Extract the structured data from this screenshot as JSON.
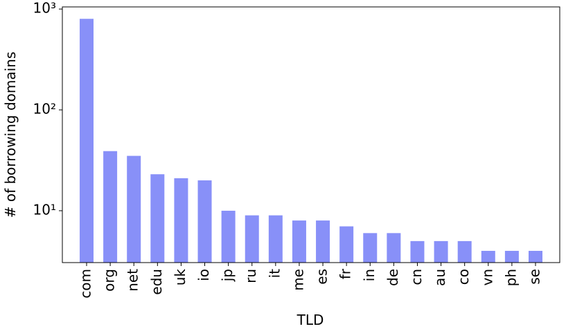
{
  "chart_data": {
    "type": "bar",
    "x_label": "TLD",
    "y_label": "# of borrowing domains",
    "log_scale": true,
    "categories": [
      "com",
      "org",
      "net",
      "edu",
      "uk",
      "io",
      "jp",
      "ru",
      "it",
      "me",
      "es",
      "fr",
      "in",
      "de",
      "cn",
      "au",
      "co",
      "vn",
      "ph",
      "se"
    ],
    "values": [
      800,
      39,
      35,
      23,
      21,
      20,
      10,
      9,
      9,
      8,
      8,
      7,
      6,
      6,
      5,
      5,
      5,
      4,
      4,
      4
    ],
    "color": "#8890f8",
    "ylim": [
      3.06,
      1050
    ],
    "yticks": [
      {
        "value": 10,
        "label": "10¹"
      },
      {
        "value": 100,
        "label": "10²"
      },
      {
        "value": 1000,
        "label": "10³"
      }
    ]
  }
}
